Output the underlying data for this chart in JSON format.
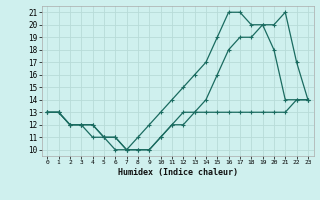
{
  "xlabel": "Humidex (Indice chaleur)",
  "ylabel": "",
  "x_ticks": [
    0,
    1,
    2,
    3,
    4,
    5,
    6,
    7,
    8,
    9,
    10,
    11,
    12,
    13,
    14,
    15,
    16,
    17,
    18,
    19,
    20,
    21,
    22,
    23
  ],
  "y_ticks": [
    10,
    11,
    12,
    13,
    14,
    15,
    16,
    17,
    18,
    19,
    20,
    21
  ],
  "xlim": [
    -0.5,
    23.5
  ],
  "ylim": [
    9.5,
    21.5
  ],
  "background_color": "#cff0ee",
  "grid_color": "#b8dbd8",
  "line_color": "#1a6b60",
  "lines": [
    {
      "x": [
        0,
        1,
        2,
        3,
        4,
        5,
        6,
        7,
        8,
        9,
        10,
        11,
        12,
        13,
        14,
        15,
        16,
        17,
        18,
        19,
        20,
        21,
        22,
        23
      ],
      "y": [
        13,
        13,
        12,
        12,
        11,
        11,
        10,
        10,
        11,
        12,
        13,
        14,
        15,
        16,
        17,
        19,
        21,
        21,
        20,
        20,
        18,
        14,
        14,
        14
      ]
    },
    {
      "x": [
        0,
        1,
        2,
        3,
        4,
        5,
        6,
        7,
        8,
        9,
        10,
        11,
        12,
        13,
        14,
        15,
        16,
        17,
        18,
        19,
        20,
        21,
        22,
        23
      ],
      "y": [
        13,
        13,
        12,
        12,
        12,
        11,
        11,
        10,
        10,
        10,
        11,
        12,
        13,
        13,
        14,
        16,
        18,
        19,
        19,
        20,
        20,
        21,
        17,
        14
      ]
    },
    {
      "x": [
        0,
        1,
        2,
        3,
        4,
        5,
        6,
        7,
        8,
        9,
        10,
        11,
        12,
        13,
        14,
        15,
        16,
        17,
        18,
        19,
        20,
        21,
        22,
        23
      ],
      "y": [
        13,
        13,
        12,
        12,
        12,
        11,
        11,
        10,
        10,
        10,
        11,
        12,
        12,
        13,
        13,
        13,
        13,
        13,
        13,
        13,
        13,
        13,
        14,
        14
      ]
    }
  ]
}
